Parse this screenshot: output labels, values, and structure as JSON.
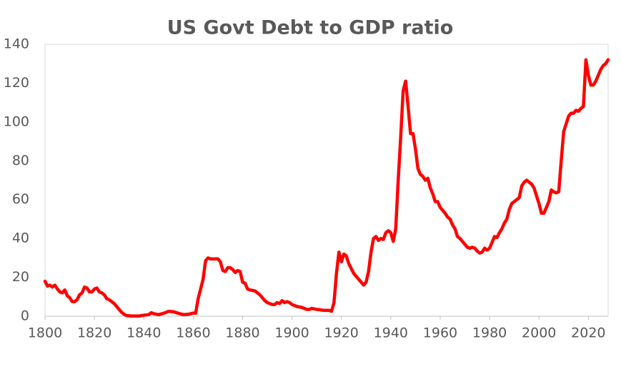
{
  "chart_data": {
    "type": "line",
    "title": "US Govt Debt to GDP ratio",
    "x": [
      1800,
      1801,
      1802,
      1803,
      1804,
      1805,
      1806,
      1807,
      1808,
      1809,
      1810,
      1811,
      1812,
      1813,
      1814,
      1815,
      1816,
      1817,
      1818,
      1819,
      1820,
      1821,
      1822,
      1823,
      1824,
      1825,
      1826,
      1827,
      1828,
      1829,
      1830,
      1831,
      1832,
      1833,
      1835,
      1838,
      1840,
      1842,
      1843,
      1844,
      1846,
      1848,
      1850,
      1852,
      1854,
      1856,
      1858,
      1860,
      1861,
      1862,
      1863,
      1864,
      1865,
      1866,
      1867,
      1870,
      1871,
      1872,
      1873,
      1874,
      1875,
      1876,
      1877,
      1878,
      1879,
      1880,
      1881,
      1882,
      1883,
      1885,
      1887,
      1888,
      1889,
      1890,
      1892,
      1893,
      1894,
      1895,
      1896,
      1897,
      1898,
      1899,
      1900,
      1902,
      1904,
      1906,
      1907,
      1908,
      1910,
      1913,
      1915,
      1916,
      1917,
      1918,
      1919,
      1920,
      1921,
      1922,
      1923,
      1925,
      1927,
      1929,
      1930,
      1931,
      1932,
      1933,
      1934,
      1935,
      1936,
      1937,
      1938,
      1939,
      1940,
      1941,
      1942,
      1943,
      1944,
      1945,
      1946,
      1947,
      1948,
      1949,
      1950,
      1951,
      1952,
      1953,
      1954,
      1955,
      1956,
      1957,
      1958,
      1959,
      1960,
      1962,
      1963,
      1964,
      1965,
      1966,
      1967,
      1968,
      1970,
      1971,
      1972,
      1973,
      1974,
      1975,
      1976,
      1977,
      1978,
      1979,
      1980,
      1981,
      1982,
      1983,
      1984,
      1985,
      1986,
      1987,
      1988,
      1989,
      1990,
      1991,
      1992,
      1993,
      1994,
      1995,
      1996,
      1997,
      1998,
      1999,
      2000,
      2001,
      2002,
      2003,
      2004,
      2005,
      2006,
      2007,
      2008,
      2009,
      2010,
      2011,
      2012,
      2013,
      2014,
      2015,
      2016,
      2017,
      2018,
      2019,
      2020,
      2021,
      2022,
      2023,
      2024,
      2025,
      2026,
      2027,
      2028
    ],
    "values": [
      18,
      15.5,
      16,
      15,
      16,
      14,
      12.5,
      12,
      13.5,
      10.5,
      9.5,
      7.5,
      7.5,
      8.5,
      11,
      12,
      15,
      14.5,
      12.5,
      12.5,
      14,
      14.5,
      12.5,
      12,
      11,
      9,
      8.5,
      7.5,
      6.5,
      5,
      3.5,
      2,
      1,
      0.3,
      0.1,
      0.1,
      0.5,
      0.8,
      1.8,
      1.3,
      0.8,
      1.5,
      2.5,
      2.3,
      1.5,
      0.8,
      1,
      1.6,
      1.5,
      9,
      14,
      19,
      28.5,
      30,
      29.5,
      29.5,
      28,
      23.5,
      23,
      25,
      25,
      24,
      22.5,
      23.5,
      23,
      17.5,
      17,
      14,
      13.5,
      13,
      11,
      9.5,
      8,
      7,
      6,
      6,
      7,
      6.5,
      8,
      7,
      7.5,
      7,
      6,
      5,
      4.5,
      3.5,
      3.5,
      4,
      3.5,
      3,
      3,
      2.5,
      7,
      22,
      33,
      28,
      32,
      31,
      27,
      22,
      19,
      16,
      17.5,
      23,
      33,
      40,
      41,
      39,
      40,
      39.5,
      43,
      44,
      43,
      38.5,
      45,
      70,
      92,
      116,
      121,
      108,
      94,
      94,
      86,
      76,
      73,
      72,
      70,
      71,
      66,
      63,
      59,
      59,
      56,
      53,
      51,
      50,
      47,
      45,
      41,
      40,
      37,
      35.5,
      35,
      35.5,
      35,
      33.5,
      32.5,
      33,
      35,
      34,
      35,
      38,
      41,
      40.5,
      43,
      45,
      48,
      50,
      55,
      58,
      59,
      60,
      61,
      67,
      69,
      70,
      69,
      68,
      66,
      62,
      58,
      53,
      53,
      56,
      59,
      65,
      64,
      63.5,
      64,
      80,
      95,
      99,
      103,
      104.5,
      104.5,
      106,
      105.5,
      107,
      108,
      132,
      124,
      119,
      119,
      121,
      124,
      127,
      129,
      130,
      132
    ],
    "color": "#ff0000",
    "xlim": [
      1800,
      2028
    ],
    "xticks": [
      1800,
      1820,
      1840,
      1860,
      1880,
      1900,
      1920,
      1940,
      1960,
      1980,
      2000,
      2020
    ],
    "ylim": [
      0,
      140
    ],
    "yticks": [
      0,
      20,
      40,
      60,
      80,
      100,
      120,
      140
    ],
    "grid": false
  }
}
